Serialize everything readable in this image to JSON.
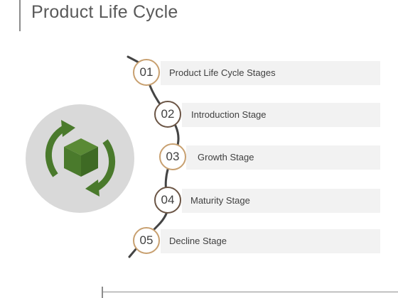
{
  "title": "Product Life Cycle",
  "icon": {
    "name": "product-cycle-icon",
    "color": "#4a7a2c",
    "disc_color": "#d9d9d9"
  },
  "colors": {
    "ring_tan": "#c8a070",
    "ring_dark": "#6b5545",
    "connector": "#444444",
    "bar": "#f2f2f2"
  },
  "stages": [
    {
      "number": "01",
      "label": "Product Life Cycle Stages",
      "ring": "tan"
    },
    {
      "number": "02",
      "label": "Introduction Stage",
      "ring": "dark"
    },
    {
      "number": "03",
      "label": "Growth Stage",
      "ring": "tan"
    },
    {
      "number": "04",
      "label": "Maturity Stage",
      "ring": "dark"
    },
    {
      "number": "05",
      "label": "Decline Stage",
      "ring": "tan"
    }
  ]
}
